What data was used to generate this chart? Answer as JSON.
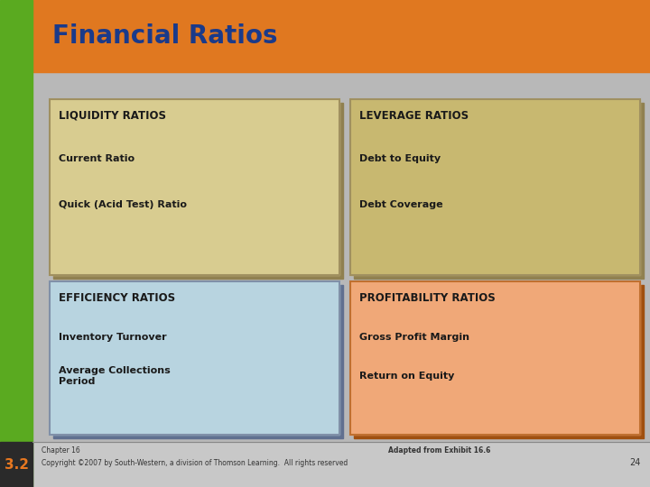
{
  "title": "Financial Ratios",
  "title_color": "#1a3a8a",
  "title_bg_color": "#e07820",
  "left_bar_color": "#5aaa20",
  "bg_color": "#c8c8c8",
  "slide_number": "3.2",
  "slide_number_color": "#e87820",
  "slide_number_bg": "#2a2a2a",
  "boxes": [
    {
      "id": "tl",
      "header": "LIQUIDITY RATIOS",
      "items": [
        "Current Ratio",
        "Quick (Acid Test) Ratio"
      ],
      "bg": "#d8cc90",
      "border": "#a09060",
      "shadow": "#908050"
    },
    {
      "id": "tr",
      "header": "LEVERAGE RATIOS",
      "items": [
        "Debt to Equity",
        "Debt Coverage"
      ],
      "bg": "#c8b870",
      "border": "#a09060",
      "shadow": "#908050"
    },
    {
      "id": "bl",
      "header": "EFFICIENCY RATIOS",
      "items": [
        "Inventory Turnover",
        "Average Collections\nPeriod"
      ],
      "bg": "#b8d4e0",
      "border": "#8090a8",
      "shadow": "#607090"
    },
    {
      "id": "br",
      "header": "PROFITABILITY RATIOS",
      "items": [
        "Gross Profit Margin",
        "Return on Equity"
      ],
      "bg": "#f0a878",
      "border": "#c07030",
      "shadow": "#a05010"
    }
  ],
  "text_color": "#1a1a1a",
  "header_color": "#1a1a1a",
  "footer_left1": "Chapter 16",
  "footer_left2": "Copyright ©2007 by South-Western, a division of Thomson Learning.  All rights reserved",
  "footer_center": "Adapted from Exhibit 16.6",
  "footer_number": "24"
}
